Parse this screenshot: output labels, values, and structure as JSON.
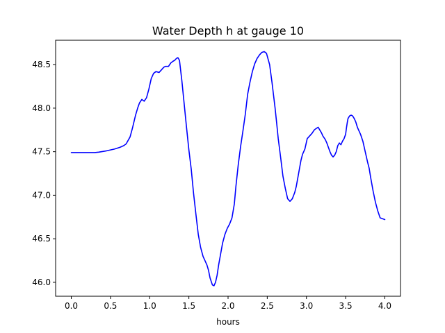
{
  "chart_data": {
    "type": "line",
    "title": "Water Depth h at gauge 10",
    "xlabel": "hours",
    "ylabel": "",
    "xlim": [
      -0.2,
      4.2
    ],
    "ylim": [
      45.84,
      48.78
    ],
    "xticks": [
      0.0,
      0.5,
      1.0,
      1.5,
      2.0,
      2.5,
      3.0,
      3.5,
      4.0
    ],
    "xtick_labels": [
      "0.0",
      "0.5",
      "1.0",
      "1.5",
      "2.0",
      "2.5",
      "3.0",
      "3.5",
      "4.0"
    ],
    "yticks": [
      46.0,
      46.5,
      47.0,
      47.5,
      48.0,
      48.5
    ],
    "ytick_labels": [
      "46.0",
      "46.5",
      "47.0",
      "47.5",
      "48.0",
      "48.5"
    ],
    "grid": false,
    "series": [
      {
        "color": "#0000ff",
        "x": [
          0.0,
          0.1,
          0.2,
          0.3,
          0.35,
          0.45,
          0.55,
          0.62,
          0.67,
          0.7,
          0.75,
          0.78,
          0.82,
          0.85,
          0.87,
          0.9,
          0.93,
          0.96,
          0.99,
          1.02,
          1.05,
          1.08,
          1.12,
          1.15,
          1.18,
          1.2,
          1.24,
          1.27,
          1.3,
          1.32,
          1.34,
          1.36,
          1.38,
          1.41,
          1.44,
          1.47,
          1.5,
          1.53,
          1.56,
          1.59,
          1.62,
          1.65,
          1.68,
          1.71,
          1.73,
          1.75,
          1.77,
          1.8,
          1.82,
          1.84,
          1.86,
          1.88,
          1.9,
          1.93,
          1.96,
          1.99,
          2.02,
          2.05,
          2.08,
          2.1,
          2.13,
          2.16,
          2.19,
          2.22,
          2.25,
          2.28,
          2.31,
          2.34,
          2.37,
          2.4,
          2.43,
          2.46,
          2.49,
          2.53,
          2.56,
          2.58,
          2.6,
          2.62,
          2.64,
          2.67,
          2.7,
          2.73,
          2.76,
          2.79,
          2.82,
          2.85,
          2.87,
          2.89,
          2.91,
          2.93,
          2.95,
          2.98,
          3.01,
          3.04,
          3.07,
          3.1,
          3.13,
          3.15,
          3.17,
          3.19,
          3.21,
          3.24,
          3.26,
          3.28,
          3.3,
          3.32,
          3.34,
          3.36,
          3.38,
          3.4,
          3.42,
          3.44,
          3.46,
          3.48,
          3.5,
          3.51,
          3.52,
          3.53,
          3.55,
          3.57,
          3.59,
          3.61,
          3.63,
          3.65,
          3.67,
          3.69,
          3.72,
          3.75,
          3.78,
          3.8,
          3.82,
          3.85,
          3.88,
          3.91,
          3.94,
          3.97,
          4.0
        ],
        "y": [
          47.49,
          47.49,
          47.49,
          47.49,
          47.495,
          47.51,
          47.53,
          47.55,
          47.57,
          47.59,
          47.67,
          47.77,
          47.92,
          48.01,
          48.06,
          48.1,
          48.08,
          48.12,
          48.22,
          48.34,
          48.4,
          48.42,
          48.41,
          48.44,
          48.47,
          48.48,
          48.48,
          48.52,
          48.54,
          48.55,
          48.57,
          48.58,
          48.55,
          48.32,
          48.05,
          47.78,
          47.52,
          47.3,
          47.02,
          46.78,
          46.55,
          46.4,
          46.3,
          46.24,
          46.2,
          46.14,
          46.05,
          45.97,
          45.96,
          46.0,
          46.08,
          46.2,
          46.3,
          46.45,
          46.55,
          46.62,
          46.67,
          46.74,
          46.9,
          47.1,
          47.35,
          47.56,
          47.74,
          47.93,
          48.16,
          48.3,
          48.42,
          48.51,
          48.57,
          48.61,
          48.64,
          48.65,
          48.63,
          48.5,
          48.3,
          48.15,
          48.0,
          47.83,
          47.65,
          47.44,
          47.22,
          47.08,
          46.96,
          46.93,
          46.96,
          47.03,
          47.1,
          47.2,
          47.3,
          47.4,
          47.47,
          47.53,
          47.65,
          47.68,
          47.71,
          47.75,
          47.77,
          47.78,
          47.75,
          47.72,
          47.68,
          47.64,
          47.6,
          47.55,
          47.5,
          47.46,
          47.44,
          47.46,
          47.5,
          47.57,
          47.6,
          47.58,
          47.62,
          47.65,
          47.7,
          47.77,
          47.83,
          47.88,
          47.91,
          47.92,
          47.91,
          47.88,
          47.84,
          47.78,
          47.74,
          47.7,
          47.62,
          47.5,
          47.38,
          47.31,
          47.2,
          47.05,
          46.92,
          46.82,
          46.74,
          46.73,
          46.72
        ]
      }
    ]
  }
}
